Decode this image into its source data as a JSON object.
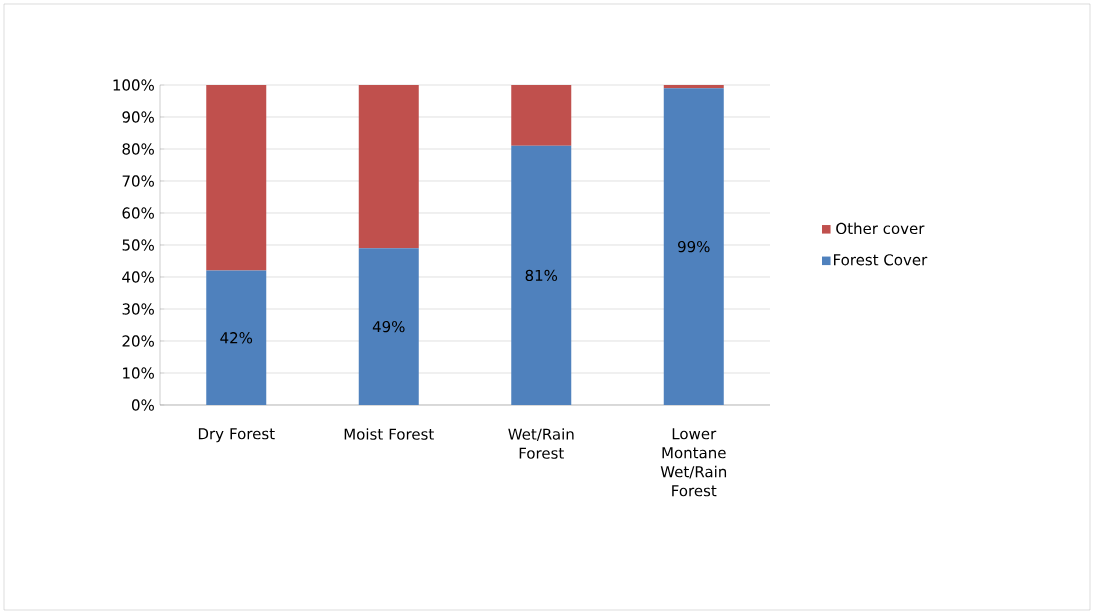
{
  "chart_data": {
    "type": "bar",
    "stacked": true,
    "categories": [
      "Dry Forest",
      "Moist Forest",
      "Wet/Rain Forest",
      "Lower Montane Wet/Rain Forest"
    ],
    "series": [
      {
        "name": "Forest Cover",
        "color": "#4f81bd",
        "values": [
          42,
          49,
          81,
          99
        ],
        "value_labels": [
          "42%",
          "49%",
          "81%",
          "99%"
        ]
      },
      {
        "name": "Other cover",
        "color": "#c0504d",
        "values": [
          58,
          51,
          19,
          1
        ]
      }
    ],
    "ylim": [
      0,
      100
    ],
    "yticks": [
      {
        "value": 0,
        "label": "0%"
      },
      {
        "value": 10,
        "label": "10%"
      },
      {
        "value": 20,
        "label": "20%"
      },
      {
        "value": 30,
        "label": "30%"
      },
      {
        "value": 40,
        "label": "40%"
      },
      {
        "value": 50,
        "label": "50%"
      },
      {
        "value": 60,
        "label": "60%"
      },
      {
        "value": 70,
        "label": "70%"
      },
      {
        "value": 80,
        "label": "80%"
      },
      {
        "value": 90,
        "label": "90%"
      },
      {
        "value": 100,
        "label": "100%"
      }
    ],
    "grid": "y",
    "legend": "right"
  }
}
